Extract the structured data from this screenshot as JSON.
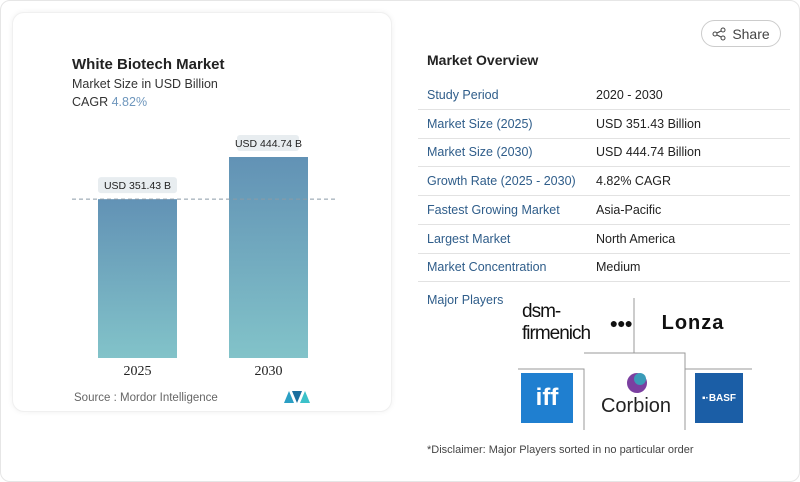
{
  "share_label": "Share",
  "chart_card": {
    "title": "White Biotech Market",
    "subtitle": "Market Size in USD Billion",
    "cagr_label": "CAGR",
    "cagr_value": "4.82%",
    "source": "Source :  Mordor Intelligence"
  },
  "chart_data": {
    "type": "bar",
    "title": "White Biotech Market",
    "categories": [
      "2025",
      "2030"
    ],
    "values": [
      351.43,
      444.74
    ],
    "data_labels": [
      "USD 351.43 B",
      "USD 444.74 B"
    ],
    "ylabel": "Market Size in USD Billion",
    "ylim": [
      0,
      444.74
    ],
    "grid": false,
    "bar_color_top": "#6292b5",
    "bar_color_bottom": "#82c3c9"
  },
  "overview": {
    "title": "Market Overview",
    "rows": [
      {
        "label": "Study Period",
        "value": "2020 - 2030"
      },
      {
        "label": "Market Size (2025)",
        "value": "USD 351.43 Billion"
      },
      {
        "label": "Market Size (2030)",
        "value": "USD 444.74 Billion"
      },
      {
        "label": "Growth Rate (2025 - 2030)",
        "value": "4.82% CAGR"
      },
      {
        "label": "Fastest Growing Market",
        "value": "Asia-Pacific"
      },
      {
        "label": "Largest Market",
        "value": "North America"
      },
      {
        "label": "Market Concentration",
        "value": "Medium"
      }
    ],
    "major_players_label": "Major Players",
    "players": [
      "dsm-firmenich",
      "Lonza",
      "iff",
      "Corbion",
      "BASF"
    ],
    "disclaimer": "*Disclaimer: Major Players sorted in no particular order"
  }
}
